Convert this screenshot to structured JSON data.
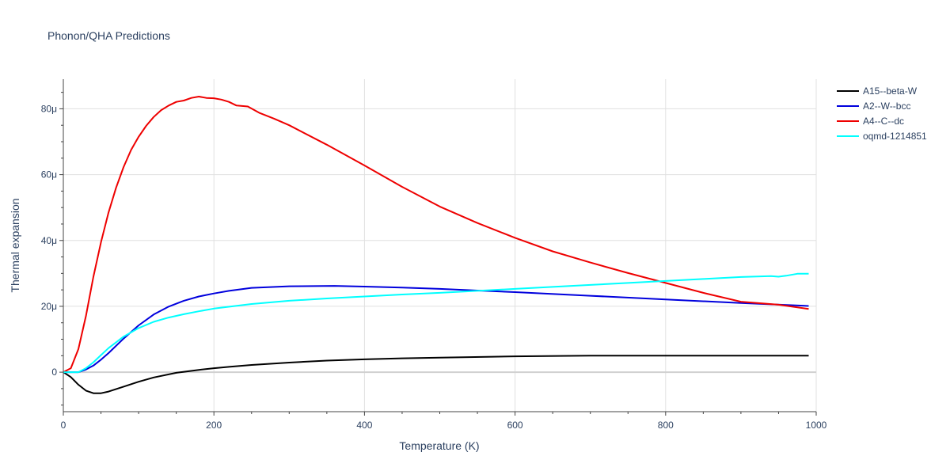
{
  "chart_data": {
    "type": "line",
    "title": "Phonon/QHA Predictions",
    "xlabel": "Temperature (K)",
    "ylabel": "Thermal expansion",
    "xlim": [
      0,
      1000
    ],
    "ylim": [
      -12,
      89
    ],
    "x_ticks": [
      0,
      200,
      400,
      600,
      800,
      1000
    ],
    "x_tick_labels": [
      "0",
      "200",
      "400",
      "600",
      "800",
      "1000"
    ],
    "y_ticks": [
      0,
      20,
      40,
      60,
      80
    ],
    "y_tick_labels": [
      "0",
      "20μ",
      "40μ",
      "60μ",
      "80μ"
    ],
    "grid": true,
    "legend_position": "top-right",
    "series": [
      {
        "name": "A15--beta-W",
        "color": "#000000",
        "x": [
          0,
          10,
          20,
          30,
          40,
          50,
          60,
          80,
          100,
          120,
          150,
          180,
          200,
          220,
          250,
          300,
          350,
          400,
          450,
          500,
          570,
          600,
          700,
          750,
          800,
          900,
          990
        ],
        "y": [
          0,
          -1.5,
          -3.8,
          -5.6,
          -6.4,
          -6.4,
          -5.9,
          -4.4,
          -2.9,
          -1.6,
          -0.2,
          0.7,
          1.2,
          1.6,
          2.2,
          2.9,
          3.5,
          3.9,
          4.2,
          4.4,
          4.7,
          4.8,
          5.0,
          5.0,
          5.0,
          5.0,
          5.0
        ]
      },
      {
        "name": "A2--W--bcc",
        "color": "#0000dd",
        "x": [
          0,
          10,
          20,
          30,
          40,
          50,
          60,
          80,
          100,
          120,
          140,
          160,
          180,
          200,
          220,
          250,
          300,
          360,
          400,
          450,
          500,
          550,
          600,
          700,
          800,
          900,
          990
        ],
        "y": [
          0,
          0,
          0,
          0.8,
          2.0,
          3.8,
          5.8,
          10.2,
          14.2,
          17.5,
          19.9,
          21.7,
          23.0,
          23.9,
          24.7,
          25.6,
          26.1,
          26.2,
          26.0,
          25.7,
          25.3,
          24.8,
          24.3,
          23.2,
          22.1,
          21.0,
          20.1
        ]
      },
      {
        "name": "A4--C--dc",
        "color": "#ee0000",
        "x": [
          0,
          10,
          20,
          30,
          40,
          50,
          60,
          70,
          80,
          90,
          100,
          110,
          120,
          130,
          140,
          150,
          160,
          170,
          180,
          190,
          200,
          210,
          220,
          230,
          245,
          260,
          280,
          300,
          350,
          400,
          450,
          500,
          550,
          600,
          650,
          700,
          750,
          800,
          850,
          900,
          950,
          990
        ],
        "y": [
          0,
          1.2,
          7,
          17,
          29,
          39.5,
          48.5,
          56,
          62.3,
          67.5,
          71.5,
          74.8,
          77.5,
          79.6,
          81,
          82.1,
          82.5,
          83.3,
          83.7,
          83.3,
          83.2,
          82.8,
          82.1,
          81.0,
          80.7,
          78.8,
          77.0,
          75.0,
          69.1,
          62.8,
          56.3,
          50.3,
          45.3,
          40.8,
          36.7,
          33.3,
          30.1,
          27.1,
          24.1,
          21.4,
          20.5,
          19.2
        ]
      },
      {
        "name": "oqmd-1214851",
        "color": "#00ffff",
        "x": [
          0,
          10,
          20,
          30,
          40,
          50,
          60,
          80,
          100,
          120,
          140,
          160,
          180,
          200,
          250,
          300,
          350,
          400,
          450,
          500,
          550,
          600,
          650,
          700,
          750,
          800,
          850,
          900,
          940,
          950,
          960,
          975,
          990
        ],
        "y": [
          0,
          0,
          0,
          1.2,
          3.0,
          5.2,
          7.3,
          10.8,
          13.4,
          15.3,
          16.6,
          17.6,
          18.5,
          19.3,
          20.7,
          21.7,
          22.4,
          23.0,
          23.6,
          24.1,
          24.7,
          25.3,
          25.9,
          26.5,
          27.1,
          27.7,
          28.3,
          28.9,
          29.2,
          29.0,
          29.3,
          29.9,
          29.9
        ]
      }
    ]
  }
}
